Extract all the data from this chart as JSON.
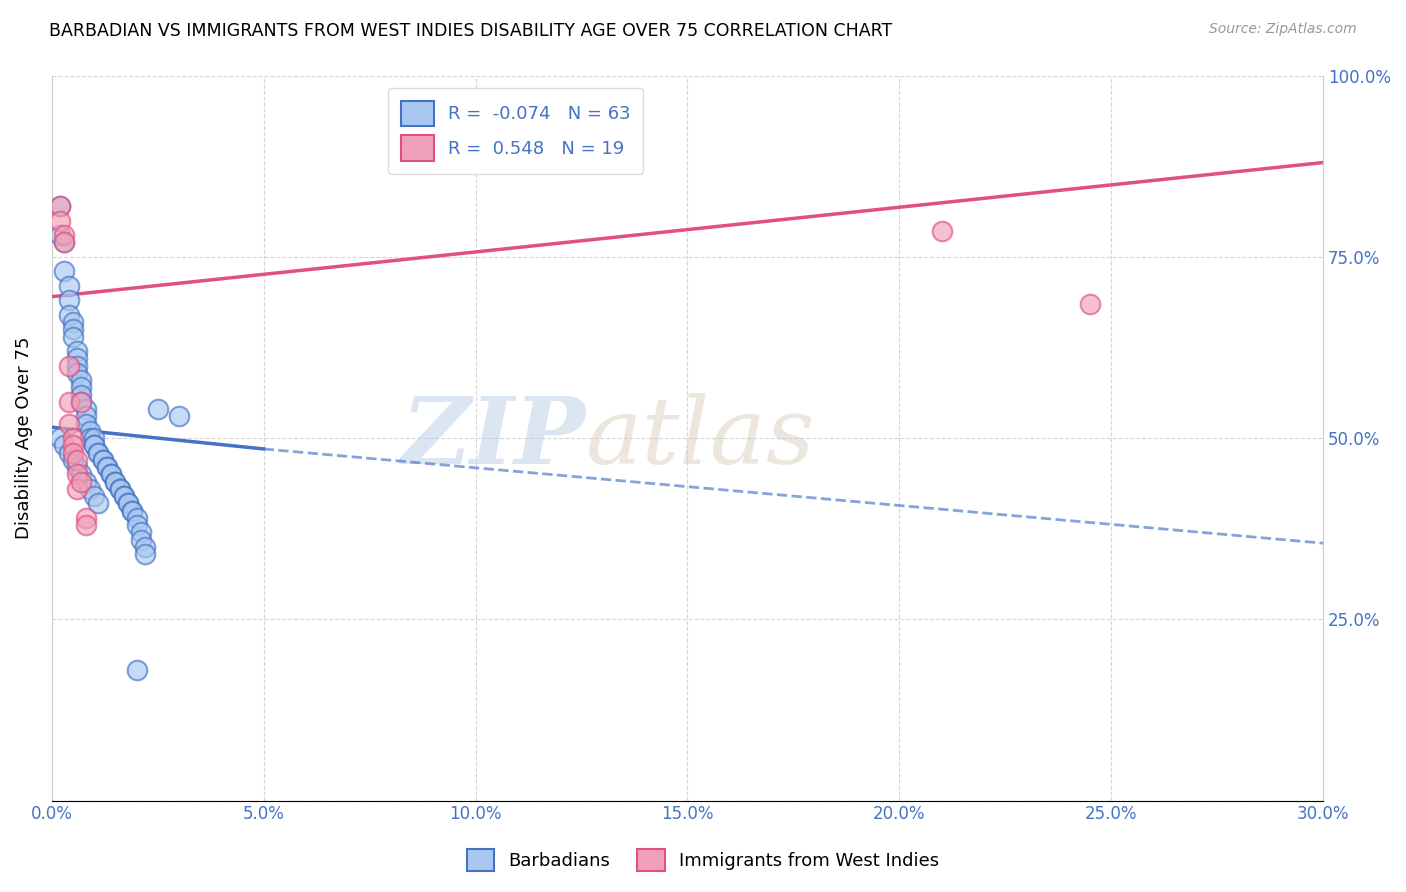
{
  "title": "BARBADIAN VS IMMIGRANTS FROM WEST INDIES DISABILITY AGE OVER 75 CORRELATION CHART",
  "source": "Source: ZipAtlas.com",
  "ylabel": "Disability Age Over 75",
  "xlabel_legend_blue": "Barbadians",
  "xlabel_legend_pink": "Immigrants from West Indies",
  "xmin": 0.0,
  "xmax": 0.3,
  "ymin": 0.0,
  "ymax": 1.0,
  "yticks": [
    0.0,
    0.25,
    0.5,
    0.75,
    1.0
  ],
  "xticks": [
    0.0,
    0.05,
    0.1,
    0.15,
    0.2,
    0.25,
    0.3
  ],
  "xtick_labels": [
    "0.0%",
    "5.0%",
    "10.0%",
    "15.0%",
    "20.0%",
    "25.0%",
    "30.0%"
  ],
  "ytick_labels": [
    "",
    "25.0%",
    "50.0%",
    "75.0%",
    "100.0%"
  ],
  "R_blue": -0.074,
  "N_blue": 63,
  "R_pink": 0.548,
  "N_pink": 19,
  "color_blue": "#A8C8F0",
  "color_pink": "#F0A0B8",
  "line_blue": "#4472C4",
  "line_pink": "#E05080",
  "watermark_zip": "ZIP",
  "watermark_atlas": "atlas",
  "blue_scatter_x": [
    0.002,
    0.002,
    0.003,
    0.003,
    0.004,
    0.004,
    0.004,
    0.005,
    0.005,
    0.005,
    0.006,
    0.006,
    0.006,
    0.006,
    0.007,
    0.007,
    0.007,
    0.007,
    0.008,
    0.008,
    0.008,
    0.009,
    0.009,
    0.01,
    0.01,
    0.01,
    0.011,
    0.011,
    0.012,
    0.012,
    0.013,
    0.013,
    0.014,
    0.014,
    0.015,
    0.015,
    0.016,
    0.016,
    0.017,
    0.017,
    0.018,
    0.018,
    0.019,
    0.019,
    0.02,
    0.02,
    0.021,
    0.021,
    0.022,
    0.022,
    0.002,
    0.003,
    0.004,
    0.005,
    0.006,
    0.007,
    0.008,
    0.009,
    0.01,
    0.011,
    0.025,
    0.03,
    0.02
  ],
  "blue_scatter_y": [
    0.82,
    0.78,
    0.77,
    0.73,
    0.71,
    0.69,
    0.67,
    0.66,
    0.65,
    0.64,
    0.62,
    0.61,
    0.6,
    0.59,
    0.58,
    0.57,
    0.56,
    0.55,
    0.54,
    0.53,
    0.52,
    0.51,
    0.5,
    0.5,
    0.49,
    0.49,
    0.48,
    0.48,
    0.47,
    0.47,
    0.46,
    0.46,
    0.45,
    0.45,
    0.44,
    0.44,
    0.43,
    0.43,
    0.42,
    0.42,
    0.41,
    0.41,
    0.4,
    0.4,
    0.39,
    0.38,
    0.37,
    0.36,
    0.35,
    0.34,
    0.5,
    0.49,
    0.48,
    0.47,
    0.46,
    0.45,
    0.44,
    0.43,
    0.42,
    0.41,
    0.54,
    0.53,
    0.18
  ],
  "pink_scatter_x": [
    0.002,
    0.002,
    0.003,
    0.003,
    0.004,
    0.004,
    0.004,
    0.005,
    0.005,
    0.005,
    0.006,
    0.006,
    0.006,
    0.007,
    0.007,
    0.008,
    0.008,
    0.21,
    0.245
  ],
  "pink_scatter_y": [
    0.82,
    0.8,
    0.78,
    0.77,
    0.6,
    0.55,
    0.52,
    0.5,
    0.49,
    0.48,
    0.47,
    0.45,
    0.43,
    0.55,
    0.44,
    0.39,
    0.38,
    0.785,
    0.685
  ],
  "blue_solid_line_x": [
    0.0,
    0.05
  ],
  "blue_solid_line_y": [
    0.515,
    0.485
  ],
  "blue_dash_line_x": [
    0.05,
    0.3
  ],
  "blue_dash_line_y": [
    0.485,
    0.355
  ],
  "pink_line_x": [
    0.0,
    0.3
  ],
  "pink_line_y": [
    0.695,
    0.88
  ],
  "background_color": "#FFFFFF",
  "grid_color": "#CCCCCC"
}
